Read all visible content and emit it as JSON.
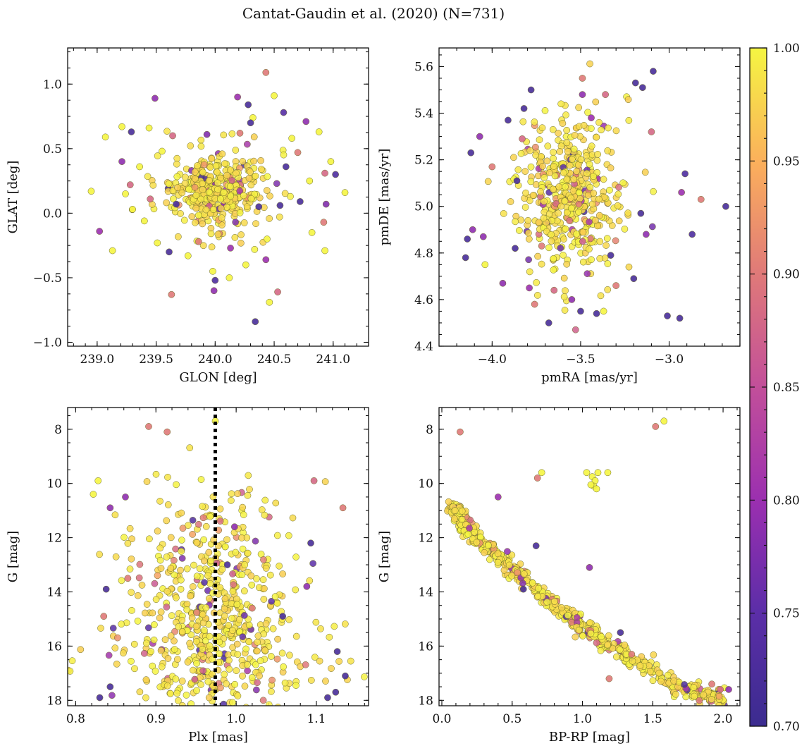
{
  "title": "Cantat-Gaudin et al. (2020) (N=731)",
  "colorbar": {
    "min": 0.7,
    "max": 1.0,
    "ticks": [
      "0.70",
      "0.75",
      "0.80",
      "0.85",
      "0.90",
      "0.95",
      "1.00"
    ],
    "colormap": "plasma"
  },
  "chart_data": [
    {
      "type": "scatter",
      "xlabel": "GLON [deg]",
      "ylabel": "GLAT [deg]",
      "xlim": [
        238.75,
        241.3
      ],
      "ylim": [
        -1.03,
        1.28
      ],
      "xticks": [
        "239.0",
        "239.5",
        "240.0",
        "240.5",
        "241.0"
      ],
      "yticks": [
        "−1.0",
        "−0.5",
        "0.0",
        "0.5",
        "1.0"
      ],
      "sparse": [
        [
          240.43,
          1.09,
          0.9
        ],
        [
          239.49,
          0.89,
          0.79
        ],
        [
          240.19,
          0.9,
          0.8
        ],
        [
          240.28,
          0.84,
          0.72
        ],
        [
          239.29,
          0.63,
          0.72
        ],
        [
          240.58,
          0.78,
          0.74
        ],
        [
          240.77,
          0.71,
          0.79
        ],
        [
          239.21,
          0.4,
          0.79
        ],
        [
          240.88,
          0.63,
          1.0
        ],
        [
          241.02,
          0.3,
          0.73
        ],
        [
          240.93,
          0.31,
          0.88
        ],
        [
          241.1,
          0.16,
          1.0
        ],
        [
          240.72,
          0.09,
          0.72
        ],
        [
          240.94,
          0.07,
          0.78
        ],
        [
          240.92,
          -0.07,
          0.9
        ],
        [
          238.95,
          0.17,
          1.0
        ],
        [
          239.02,
          -0.14,
          0.8
        ],
        [
          239.13,
          -0.29,
          1.0
        ],
        [
          239.61,
          -0.3,
          0.72
        ],
        [
          239.63,
          -0.63,
          0.9
        ],
        [
          240.0,
          -0.52,
          0.73
        ],
        [
          239.99,
          -0.6,
          0.79
        ],
        [
          240.43,
          -0.36,
          0.8
        ],
        [
          240.53,
          -0.61,
          0.88
        ],
        [
          240.46,
          -0.69,
          1.0
        ],
        [
          240.34,
          -0.84,
          0.72
        ],
        [
          240.93,
          -0.29,
          1.0
        ],
        [
          239.07,
          0.59,
          1.0
        ],
        [
          239.21,
          0.67,
          1.0
        ],
        [
          239.44,
          0.66,
          1.0
        ],
        [
          240.5,
          0.91,
          1.0
        ],
        [
          240.32,
          0.74,
          1.0
        ],
        [
          239.28,
          0.22,
          0.88
        ],
        [
          240.7,
          0.47,
          0.9
        ],
        [
          240.37,
          0.05,
          0.72
        ],
        [
          239.67,
          0.07,
          0.72
        ],
        [
          240.55,
          0.06,
          0.72
        ],
        [
          240.26,
          -0.4,
          1.0
        ],
        [
          240.12,
          -0.5,
          1.0
        ],
        [
          239.98,
          -0.45,
          1.0
        ],
        [
          239.77,
          -0.33,
          1.0
        ],
        [
          239.51,
          -0.23,
          1.0
        ],
        [
          240.82,
          -0.15,
          1.0
        ],
        [
          239.36,
          0.36,
          1.0
        ],
        [
          240.65,
          0.58,
          1.0
        ],
        [
          239.3,
          0.03,
          1.0
        ],
        [
          240.98,
          0.4,
          1.0
        ],
        [
          239.24,
          0.15,
          1.0
        ],
        [
          239.64,
          0.6,
          0.88
        ],
        [
          239.93,
          0.61,
          0.78
        ],
        [
          240.21,
          0.62,
          0.9
        ],
        [
          240.3,
          0.7,
          0.72
        ],
        [
          240.13,
          -0.27,
          0.8
        ],
        [
          239.86,
          -0.22,
          0.9
        ],
        [
          240.44,
          -0.2,
          1.0
        ],
        [
          239.55,
          0.48,
          1.0
        ],
        [
          240.6,
          0.36,
          0.72
        ],
        [
          240.8,
          0.25,
          1.0
        ],
        [
          239.45,
          0.11,
          0.88
        ],
        [
          239.4,
          -0.06,
          1.0
        ]
      ],
      "cluster": [
        {
          "n": 300,
          "cx": 240.02,
          "cy": 0.17,
          "sx": 0.24,
          "sy": 0.16,
          "seed": 11
        },
        {
          "n": 80,
          "cx": 240.02,
          "cy": 0.16,
          "sx": 0.11,
          "sy": 0.08,
          "seed": 12
        }
      ]
    },
    {
      "type": "scatter",
      "xlabel": "pmRA [mas/yr]",
      "ylabel": "pmDE [mas/yr]",
      "xlim": [
        -4.3,
        -2.6
      ],
      "ylim": [
        4.4,
        5.68
      ],
      "xticks": [
        "−4.0",
        "−3.5",
        "−3.0"
      ],
      "yticks": [
        "4.4",
        "4.6",
        "4.8",
        "5.0",
        "5.2",
        "5.4",
        "5.6"
      ],
      "sparse": [
        [
          -3.09,
          5.58,
          0.72
        ],
        [
          -3.15,
          5.51,
          0.72
        ],
        [
          -3.78,
          5.5,
          0.72
        ],
        [
          -3.49,
          5.55,
          0.9
        ],
        [
          -3.19,
          5.53,
          0.72
        ],
        [
          -4.12,
          5.23,
          0.72
        ],
        [
          -4.07,
          5.3,
          0.79
        ],
        [
          -2.91,
          5.14,
          0.73
        ],
        [
          -2.93,
          5.06,
          0.8
        ],
        [
          -2.82,
          5.03,
          0.9
        ],
        [
          -2.68,
          5.0,
          0.72
        ],
        [
          -2.87,
          4.88,
          0.73
        ],
        [
          -3.01,
          4.53,
          0.72
        ],
        [
          -2.94,
          4.52,
          0.72
        ],
        [
          -3.68,
          4.5,
          0.72
        ],
        [
          -3.41,
          4.54,
          0.72
        ],
        [
          -3.55,
          4.6,
          0.79
        ],
        [
          -4.15,
          4.78,
          0.72
        ],
        [
          -4.14,
          4.86,
          0.72
        ],
        [
          -4.11,
          4.9,
          0.79
        ],
        [
          -4.05,
          4.87,
          0.79
        ],
        [
          -3.94,
          4.67,
          0.79
        ],
        [
          -3.79,
          4.65,
          0.8
        ],
        [
          -3.76,
          4.58,
          0.9
        ],
        [
          -3.65,
          4.64,
          0.88
        ],
        [
          -3.3,
          4.66,
          0.9
        ],
        [
          -3.13,
          4.88,
          0.79
        ],
        [
          -3.1,
          5.32,
          0.88
        ],
        [
          -4.04,
          4.75,
          1.0
        ],
        [
          -3.37,
          4.55,
          1.0
        ],
        [
          -3.82,
          5.42,
          0.72
        ],
        [
          -3.36,
          5.48,
          0.88
        ],
        [
          -4.0,
          5.17,
          0.9
        ],
        [
          -3.91,
          5.37,
          0.72
        ],
        [
          -3.86,
          5.11,
          0.72
        ],
        [
          -3.16,
          4.97,
          0.72
        ],
        [
          -3.33,
          4.79,
          0.72
        ],
        [
          -3.2,
          4.69,
          0.72
        ],
        [
          -3.87,
          4.82,
          0.72
        ],
        [
          -3.5,
          4.55,
          0.72
        ],
        [
          -3.83,
          5.29,
          0.88
        ],
        [
          -3.72,
          4.83,
          0.9
        ],
        [
          -3.49,
          5.48,
          0.79
        ],
        [
          -3.44,
          5.38,
          0.8
        ]
      ],
      "cluster": [
        {
          "n": 460,
          "cx": -3.56,
          "cy": 5.05,
          "sx": 0.15,
          "sy": 0.17,
          "seed": 21
        }
      ]
    },
    {
      "type": "scatter",
      "xlabel": "Plx [mas]",
      "ylabel": "G [mag]",
      "xlim": [
        0.79,
        1.165
      ],
      "ylim": [
        18.2,
        7.2
      ],
      "xticks": [
        "0.8",
        "0.9",
        "1.0",
        "1.1"
      ],
      "yticks": [
        "8",
        "10",
        "12",
        "14",
        "16",
        "18"
      ],
      "vline": 0.974,
      "sparse": [
        [
          0.974,
          7.7,
          1.0
        ],
        [
          0.891,
          7.9,
          0.9
        ],
        [
          0.914,
          8.1,
          0.9
        ],
        [
          0.838,
          13.9,
          0.72
        ],
        [
          0.835,
          14.9,
          0.9
        ],
        [
          0.862,
          10.5,
          0.79
        ],
        [
          0.843,
          10.9,
          0.79
        ],
        [
          0.822,
          10.4,
          1.0
        ],
        [
          0.828,
          9.9,
          1.0
        ],
        [
          0.865,
          13.5,
          0.9
        ],
        [
          1.097,
          9.9,
          0.88
        ],
        [
          1.133,
          10.9,
          0.9
        ],
        [
          1.093,
          12.2,
          0.72
        ],
        [
          1.088,
          13.8,
          0.79
        ],
        [
          1.058,
          14.9,
          0.72
        ],
        [
          1.126,
          16.2,
          0.72
        ],
        [
          1.124,
          17.7,
          0.72
        ],
        [
          1.136,
          17.1,
          0.72
        ],
        [
          1.114,
          17.9,
          0.72
        ],
        [
          0.998,
          11.6,
          0.79
        ],
        [
          0.989,
          13.0,
          0.72
        ],
        [
          1.02,
          14.6,
          0.9
        ],
        [
          0.843,
          17.5,
          0.72
        ],
        [
          0.83,
          17.9,
          0.72
        ]
      ],
      "cluster": [
        {
          "n": 330,
          "cx": 0.972,
          "cy": 14.5,
          "sx": 0.045,
          "sy": 2.0,
          "seed": 31
        },
        {
          "n": 180,
          "cx": 0.972,
          "cy": 16.4,
          "sx": 0.075,
          "sy": 1.2,
          "seed": 32
        },
        {
          "n": 110,
          "cx": 0.972,
          "cy": 13.0,
          "sx": 0.06,
          "sy": 1.8,
          "seed": 33
        }
      ]
    },
    {
      "type": "scatter",
      "xlabel": "BP-RP [mag]",
      "ylabel": "G [mag]",
      "xlim": [
        -0.02,
        2.12
      ],
      "ylim": [
        18.2,
        7.2
      ],
      "xticks": [
        "0.0",
        "0.5",
        "1.0",
        "1.5",
        "2.0"
      ],
      "yticks": [
        "8",
        "10",
        "12",
        "14",
        "16",
        "18"
      ],
      "sequence": [
        [
          0.07,
          10.85
        ],
        [
          0.12,
          11.2
        ],
        [
          0.2,
          11.8
        ],
        [
          0.3,
          12.3
        ],
        [
          0.45,
          12.9
        ],
        [
          0.6,
          13.6
        ],
        [
          0.8,
          14.5
        ],
        [
          1.0,
          15.3
        ],
        [
          1.2,
          16.0
        ],
        [
          1.4,
          16.6
        ],
        [
          1.6,
          17.3
        ],
        [
          1.8,
          17.7
        ],
        [
          2.0,
          17.95
        ]
      ],
      "sparse": [
        [
          0.13,
          8.1,
          0.9
        ],
        [
          1.52,
          7.9,
          0.9
        ],
        [
          1.58,
          7.7,
          1.0
        ],
        [
          0.68,
          9.8,
          0.9
        ],
        [
          0.71,
          9.6,
          1.0
        ],
        [
          1.03,
          9.6,
          1.0
        ],
        [
          1.07,
          9.75,
          1.0
        ],
        [
          1.09,
          9.9,
          1.0
        ],
        [
          1.11,
          9.6,
          1.0
        ],
        [
          1.18,
          9.6,
          1.0
        ],
        [
          1.08,
          10.1,
          1.0
        ],
        [
          1.1,
          10.2,
          1.0
        ],
        [
          1.06,
          10.05,
          1.0
        ],
        [
          0.4,
          10.5,
          0.8
        ],
        [
          0.67,
          12.3,
          0.72
        ],
        [
          1.05,
          13.1,
          0.79
        ],
        [
          0.58,
          13.9,
          0.72
        ],
        [
          1.27,
          15.5,
          0.72
        ],
        [
          1.19,
          17.2,
          0.9
        ],
        [
          1.92,
          17.4,
          0.9
        ],
        [
          1.98,
          17.6,
          0.88
        ],
        [
          2.04,
          17.6,
          0.79
        ],
        [
          1.35,
          16.3,
          0.9
        ]
      ],
      "cluster": [
        {
          "n": 640,
          "seq": true,
          "scatter": 0.16,
          "seed": 41
        }
      ]
    }
  ]
}
